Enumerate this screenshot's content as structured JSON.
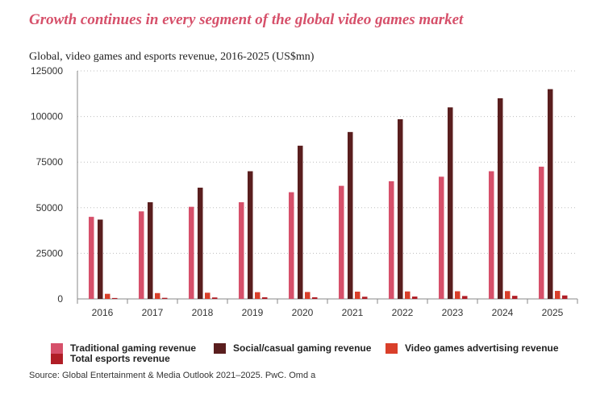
{
  "header": {
    "title": "Growth continues in every segment of the global video games market",
    "subtitle": "Global, video games and esports revenue, 2016-2025 (US$mn)"
  },
  "chart_data": {
    "type": "bar",
    "categories": [
      "2016",
      "2017",
      "2018",
      "2019",
      "2020",
      "2021",
      "2022",
      "2023",
      "2024",
      "2025"
    ],
    "ylim": [
      0,
      125000
    ],
    "yticks": [
      0,
      25000,
      50000,
      75000,
      100000,
      125000
    ],
    "ytick_labels": [
      "0",
      "25000",
      "50000",
      "75000",
      "100000",
      "125000"
    ],
    "grid": true,
    "series": [
      {
        "name": "Traditional gaming revenue",
        "color": "#d6506a",
        "values": [
          45000,
          48000,
          50500,
          53000,
          58500,
          62000,
          64500,
          67000,
          70000,
          72500
        ]
      },
      {
        "name": "Social/casual gaming revenue",
        "color": "#5a1e1e",
        "values": [
          43500,
          53000,
          61000,
          70000,
          84000,
          91500,
          98500,
          105000,
          110000,
          115000
        ]
      },
      {
        "name": "Video games advertising revenue",
        "color": "#d93f2a",
        "values": [
          2800,
          3200,
          3400,
          3700,
          3800,
          4000,
          4100,
          4200,
          4300,
          4400
        ]
      },
      {
        "name": "Total esports revenue",
        "color": "#b01e26",
        "values": [
          500,
          600,
          800,
          900,
          900,
          1200,
          1300,
          1600,
          1700,
          1900
        ]
      }
    ]
  },
  "legend": {
    "traditional": "Traditional gaming revenue",
    "social": "Social/casual gaming revenue",
    "advertising": "Video games advertising revenue",
    "esports": "Total esports revenue"
  },
  "footer": {
    "source": "Source: Global Entertainment & Media Outlook 2021–2025. PwC. Omd a"
  }
}
